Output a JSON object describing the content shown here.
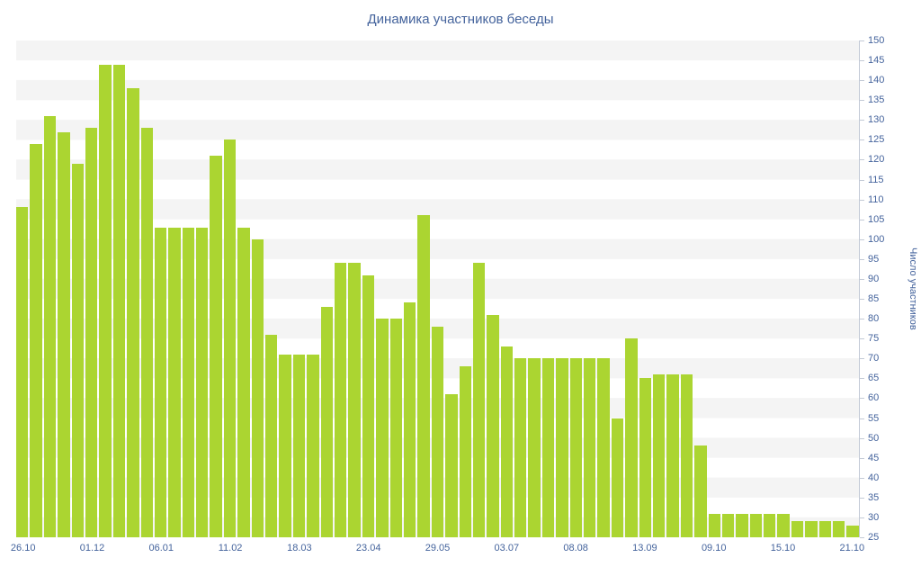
{
  "chart_data": {
    "type": "bar",
    "title": "Динамика участников беседы",
    "xlabel": "",
    "ylabel": "Число участников",
    "ymin": 25,
    "ymax": 150,
    "ytick_step": 5,
    "y_tick_labels": [
      150,
      145,
      140,
      135,
      130,
      125,
      120,
      115,
      110,
      105,
      100,
      95,
      90,
      85,
      80,
      75,
      70,
      65,
      60,
      55,
      50,
      45,
      40,
      35,
      30,
      25
    ],
    "x_tick_labels": [
      "26.10",
      "01.12",
      "06.01",
      "11.02",
      "18.03",
      "23.04",
      "29.05",
      "03.07",
      "08.08",
      "13.09",
      "09.10",
      "15.10",
      "21.10"
    ],
    "x_tick_indices": [
      0,
      5,
      10,
      15,
      20,
      25,
      30,
      35,
      40,
      45,
      50,
      55,
      60
    ],
    "values": [
      108,
      124,
      131,
      127,
      119,
      128,
      144,
      144,
      138,
      128,
      103,
      103,
      103,
      103,
      121,
      125,
      103,
      100,
      76,
      71,
      71,
      71,
      83,
      94,
      94,
      91,
      80,
      80,
      84,
      106,
      78,
      61,
      68,
      94,
      81,
      73,
      70,
      70,
      70,
      70,
      70,
      70,
      70,
      55,
      75,
      65,
      66,
      66,
      66,
      48,
      31,
      31,
      31,
      31,
      31,
      31,
      29,
      29,
      29,
      29,
      28
    ],
    "grid": "horizontal-stripes",
    "legend": "none",
    "colors": {
      "bar": "#abd531",
      "text": "#44639c",
      "stripe": "#f4f4f4",
      "axis_line": "#c3cad6",
      "background": "#ffffff"
    }
  }
}
